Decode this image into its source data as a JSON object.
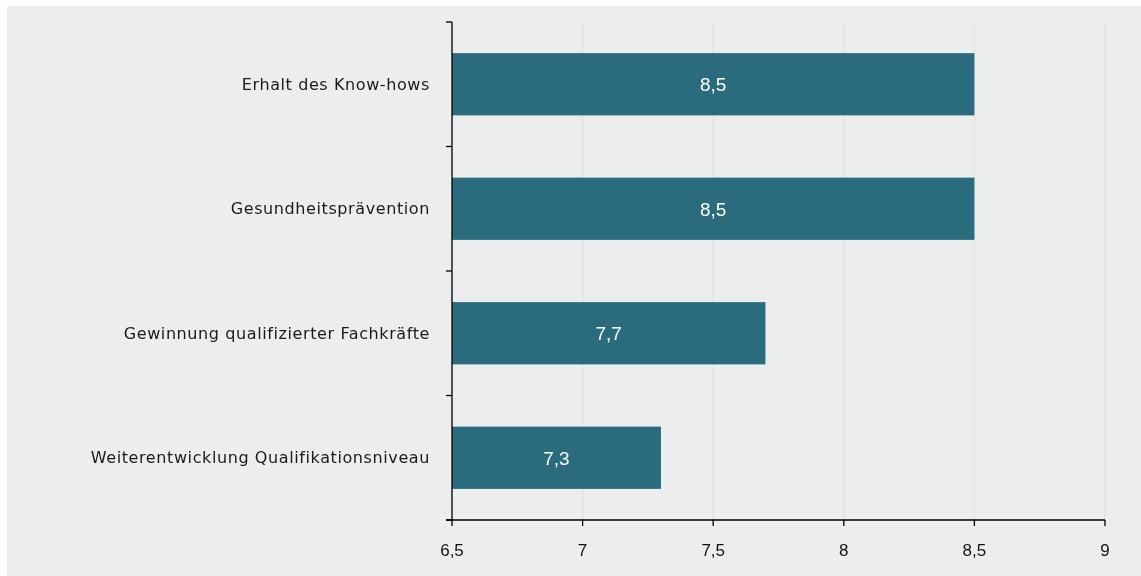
{
  "chart_data": {
    "type": "bar",
    "orientation": "horizontal",
    "categories": [
      "Erhalt des Know-hows",
      "Gesundheitsprävention",
      "Gewinnung qualifizierter Fachkräfte",
      "Weiterentwicklung Qualifikationsniveau"
    ],
    "values": [
      8.5,
      8.5,
      7.7,
      7.3
    ],
    "color": "#2a6b7d",
    "value_labels": [
      "8,5",
      "8,5",
      "7,7",
      "7,3"
    ],
    "xlim": [
      6.5,
      9
    ],
    "xticks": [
      {
        "value": 6.5,
        "label": "6,5"
      },
      7,
      {
        "value": 7.5,
        "label": "7,5"
      },
      8,
      {
        "value": 8.5,
        "label": "8,5"
      },
      9
    ],
    "grid": "x"
  }
}
